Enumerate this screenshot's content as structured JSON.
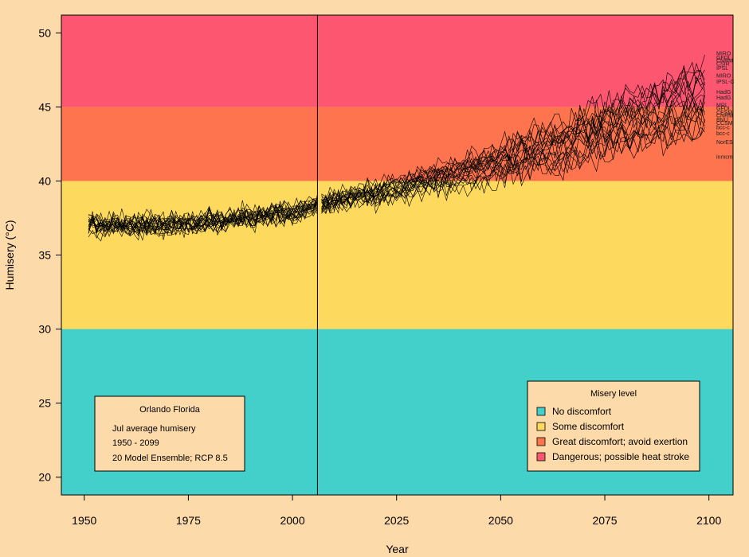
{
  "chart_data": {
    "type": "line",
    "xlabel": "Year",
    "ylabel": "Humisery (°C)",
    "xlim": [
      1944.5,
      2105.8
    ],
    "ylim": [
      18.8,
      51.2
    ],
    "x_ticks": [
      "1950",
      "1975",
      "2000",
      "2025",
      "2050",
      "2075",
      "2100"
    ],
    "y_ticks": [
      "20",
      "25",
      "30",
      "35",
      "40",
      "45",
      "50"
    ],
    "divider_year": 2006,
    "bands": [
      {
        "label": "No discomfort",
        "from": 18.8,
        "to": 30,
        "color": "#43CFCA"
      },
      {
        "label": "Some discomfort",
        "from": 30,
        "to": 40,
        "color": "#FDD95E"
      },
      {
        "label": "Great discomfort; avoid exertion",
        "from": 40,
        "to": 45,
        "color": "#FD744F"
      },
      {
        "label": "Dangerous; possible heat stroke",
        "from": 45,
        "to": 51.2,
        "color": "#FD5671"
      }
    ],
    "series_summary": {
      "count": 20,
      "year_start": 1951,
      "year_end": 2099,
      "ensemble_mean_anchor_years": [
        1951,
        1975,
        2000,
        2006,
        2025,
        2050,
        2075,
        2099
      ],
      "ensemble_mean_anchor_values": [
        37.0,
        37.1,
        37.9,
        38.4,
        39.5,
        41.2,
        43.5,
        45.5
      ]
    },
    "model_labels": [
      {
        "text": "MIRO",
        "y": 48.6
      },
      {
        "text": "GFDL",
        "y": 48.3
      },
      {
        "text": "CNRM",
        "y": 48.1
      },
      {
        "text": "CSIR",
        "y": 47.9
      },
      {
        "text": "IPSL",
        "y": 47.6
      },
      {
        "text": "MIRO",
        "y": 47.1
      },
      {
        "text": "IPSL-C",
        "y": 46.7
      },
      {
        "text": "HadG",
        "y": 46.0
      },
      {
        "text": "HadG",
        "y": 45.6
      },
      {
        "text": "MRI",
        "y": 45.1
      },
      {
        "text": "GFDL",
        "y": 44.9
      },
      {
        "text": "CESM",
        "y": 44.6
      },
      {
        "text": "CNRM",
        "y": 44.4
      },
      {
        "text": "BNU",
        "y": 44.1
      },
      {
        "text": "CCSM",
        "y": 43.9
      },
      {
        "text": "bcc-c",
        "y": 43.6
      },
      {
        "text": "bcc-c",
        "y": 43.2
      },
      {
        "text": "NorES",
        "y": 42.6
      },
      {
        "text": "inmcm",
        "y": 41.6
      }
    ]
  },
  "info_box": {
    "title": "Orlando Florida",
    "line1": "Jul average humisery",
    "line2": "1950 - 2099",
    "line3": "20 Model Ensemble; RCP 8.5"
  },
  "legend": {
    "title": "Misery level",
    "items": [
      {
        "label": "No discomfort",
        "color": "#43CFCA"
      },
      {
        "label": "Some discomfort",
        "color": "#FDD95E"
      },
      {
        "label": "Great discomfort; avoid exertion",
        "color": "#FD744F"
      },
      {
        "label": "Dangerous; possible heat stroke",
        "color": "#FD5671"
      }
    ]
  }
}
